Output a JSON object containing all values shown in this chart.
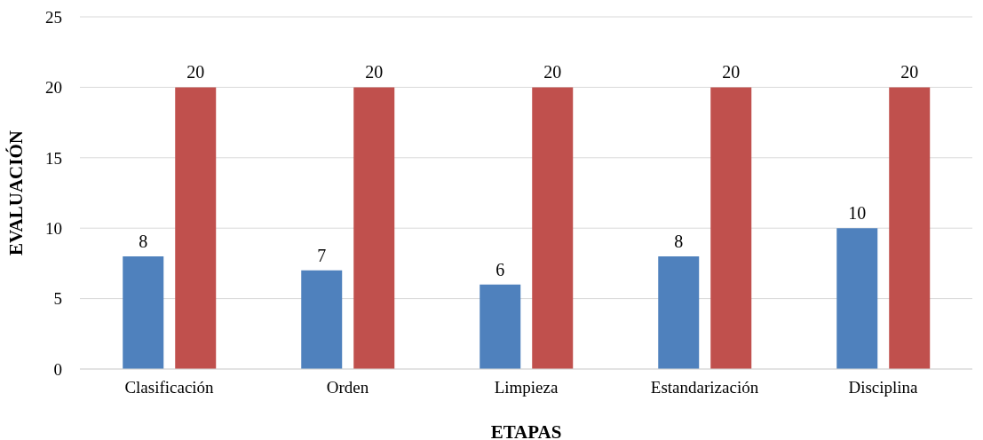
{
  "chart_data": {
    "type": "bar",
    "xlabel": "ETAPAS",
    "ylabel": "EVALUACIÓN",
    "categories": [
      "Clasificación",
      "Orden",
      "Limpieza",
      "Estandarización",
      "Disciplina"
    ],
    "series": [
      {
        "color": "#4f81bd",
        "values": [
          8,
          7,
          6,
          8,
          10
        ]
      },
      {
        "color": "#c0504d",
        "values": [
          20,
          20,
          20,
          20,
          20
        ]
      }
    ],
    "ylim": [
      0,
      25
    ],
    "yticks": [
      0,
      5,
      10,
      15,
      20,
      25
    ],
    "grid": "y",
    "data_labels": true
  }
}
